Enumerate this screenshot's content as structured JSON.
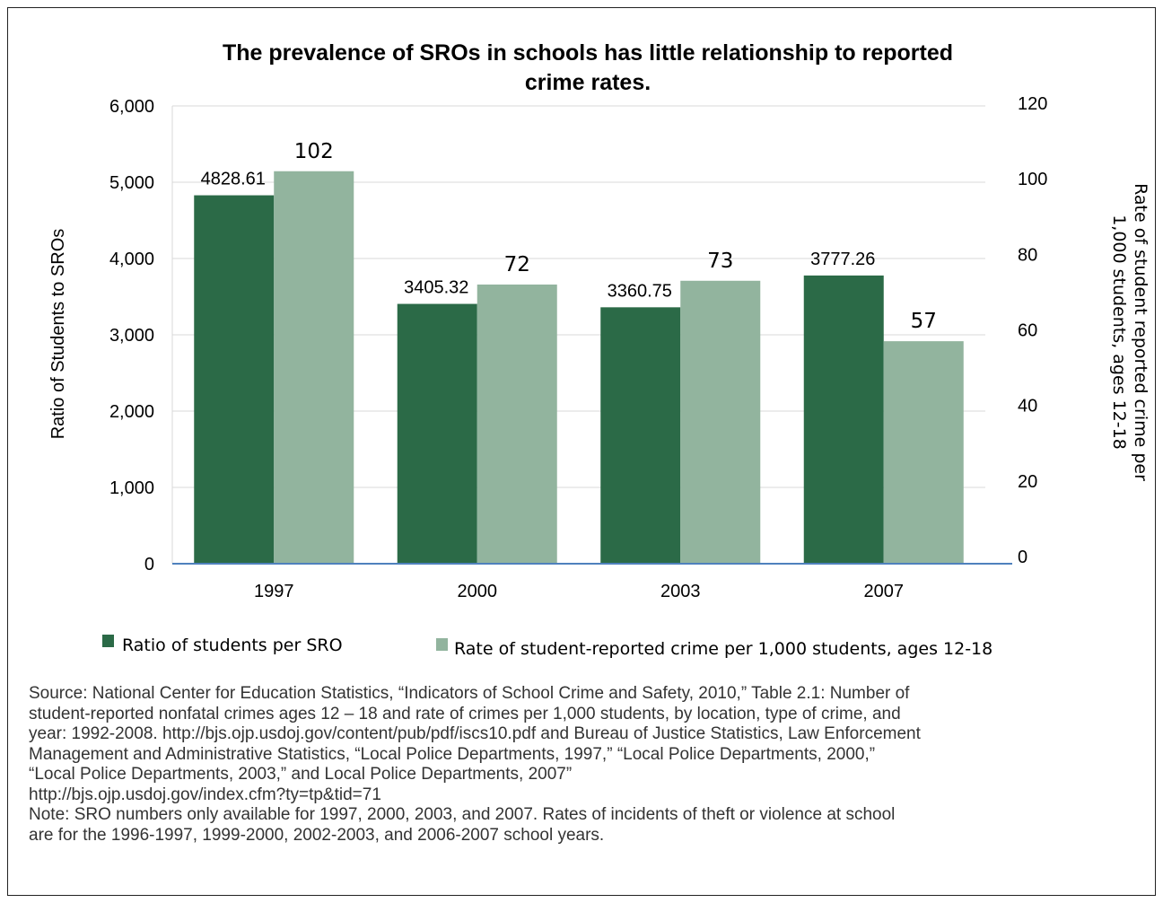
{
  "chart_data": {
    "type": "bar",
    "title_lines": [
      "The prevalence of SROs in schools has little relationship to reported",
      "crime rates."
    ],
    "categories": [
      "1997",
      "2000",
      "2003",
      "2007"
    ],
    "series": [
      {
        "name": "Ratio of students per SRO",
        "axis": "left",
        "color": "#2b6a47",
        "values": [
          4828.61,
          3405.32,
          3360.75,
          3777.26
        ],
        "labels": [
          "4828.61",
          "3405.32",
          "3360.75",
          "3777.26"
        ]
      },
      {
        "name": "Rate of student-reported crime per 1,000 students, ages 12-18",
        "axis": "right",
        "color": "#92b49e",
        "values": [
          102,
          72,
          73,
          57
        ],
        "labels": [
          "102",
          "72",
          "73",
          "57"
        ]
      }
    ],
    "y_left": {
      "label": "Ratio of Students to SROs",
      "ylim": [
        0,
        6000
      ],
      "ticks": [
        "0",
        "1,000",
        "2,000",
        "3,000",
        "4,000",
        "5,000",
        "6,000"
      ]
    },
    "y_right": {
      "label_lines": [
        "Rate of student reported crime per",
        "1,000 students, ages 12-18"
      ],
      "ylim": [
        0,
        120
      ],
      "ticks": [
        "0",
        "20",
        "40",
        "60",
        "80",
        "100",
        "120"
      ]
    },
    "grid": true,
    "legend": "bottom",
    "axis_line_color": "#4f81bd",
    "grid_color": "#d9d9d9"
  },
  "source": {
    "lines": [
      "Source: National Center for Education Statistics, “Indicators of School Crime and Safety, 2010,” Table 2.1: Number of",
      "student-reported nonfatal crimes ages 12 – 18 and rate of crimes per 1,000 students, by location, type of crime, and",
      "year: 1992-2008. http://bjs.ojp.usdoj.gov/content/pub/pdf/iscs10.pdf and Bureau of Justice Statistics, Law Enforcement",
      "Management and Administrative Statistics, “Local Police Departments, 1997,” “Local Police Departments, 2000,”",
      "“Local Police Departments, 2003,” and Local Police Departments, 2007”",
      "http://bjs.ojp.usdoj.gov/index.cfm?ty=tp&tid=71",
      "Note: SRO numbers only available for 1997, 2000, 2003, and 2007. Rates of incidents of theft or violence at school",
      "are for the 1996-1997, 1999-2000, 2002-2003, and 2006-2007 school years."
    ]
  }
}
